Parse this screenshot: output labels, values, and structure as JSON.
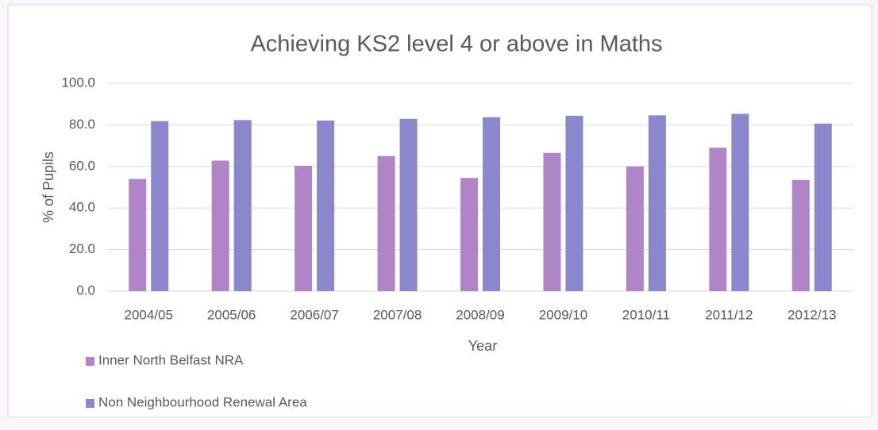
{
  "chart_data": {
    "type": "bar",
    "title": "Achieving KS2 level 4 or above in Maths",
    "x_label": "Year",
    "y_label": "% of Pupils",
    "categories": [
      "2004/05",
      "2005/06",
      "2006/07",
      "2007/08",
      "2008/09",
      "2009/10",
      "2010/11",
      "2011/12",
      "2012/13"
    ],
    "series": [
      {
        "name": "Inner North Belfast NRA",
        "color": "#b085c8",
        "values": [
          54,
          62.8,
          60.3,
          65,
          54.5,
          66.5,
          60,
          69,
          53.5
        ]
      },
      {
        "name": "Non Neighbourhood Renewal Area",
        "color": "#8a87cc",
        "values": [
          81.8,
          82.3,
          82.1,
          82.9,
          83.7,
          84.4,
          84.6,
          85.3,
          80.6
        ]
      }
    ],
    "ylim": [
      0,
      100
    ],
    "yticks": [
      {
        "value": 0,
        "label": "0.0"
      },
      {
        "value": 20,
        "label": "20.0"
      },
      {
        "value": 40,
        "label": "40.0"
      },
      {
        "value": 60,
        "label": "60.0"
      },
      {
        "value": 80,
        "label": "80.0"
      },
      {
        "value": 100,
        "label": "100.0"
      }
    ],
    "grid": true,
    "legend": "bottom-left"
  }
}
